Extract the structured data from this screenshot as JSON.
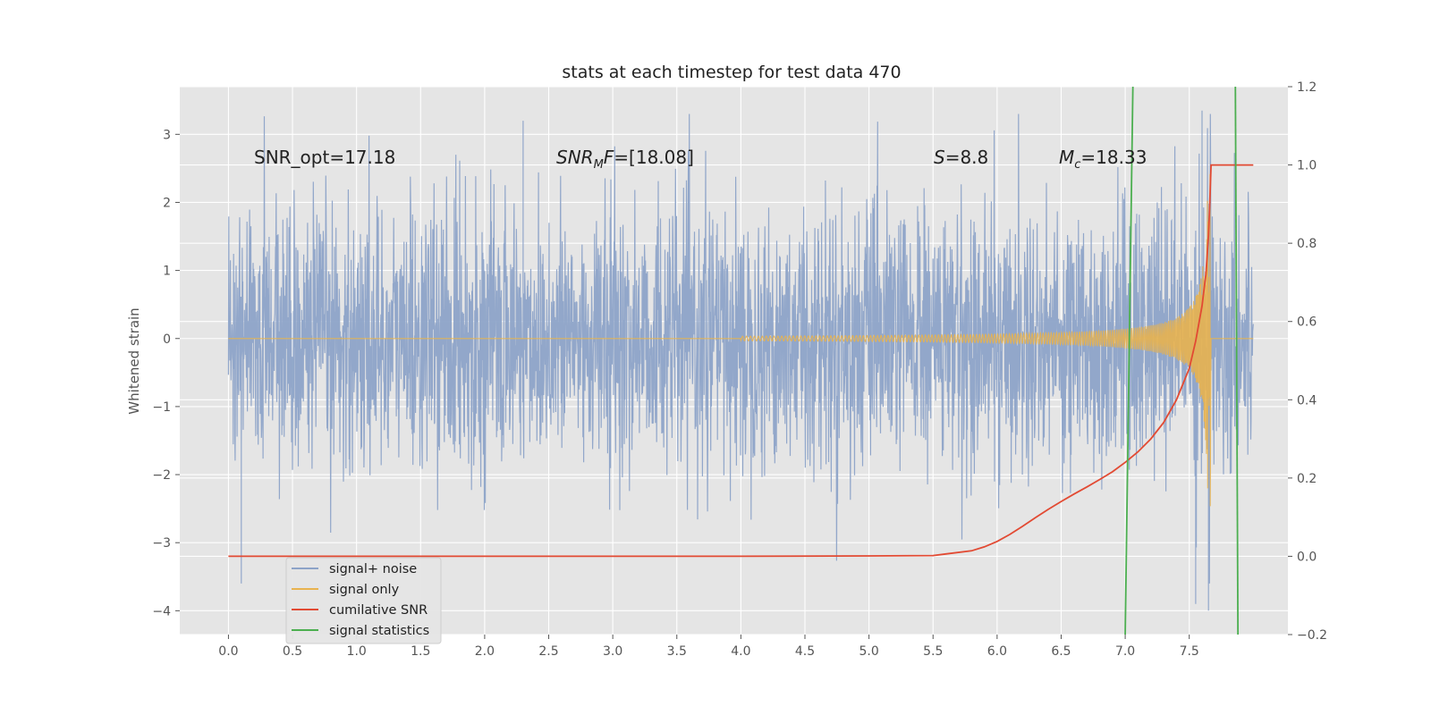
{
  "chart_data": {
    "type": "line",
    "title": "stats at each timestep for test data 470",
    "xlabel": "",
    "ylabel": "Whitened strain",
    "y2label": "",
    "xlim": [
      -0.38,
      8.27
    ],
    "ylim": [
      -4.35,
      3.7
    ],
    "y2lim": [
      -0.2,
      1.2
    ],
    "x_ticks": [
      "0.0",
      "0.5",
      "1.0",
      "1.5",
      "2.0",
      "2.5",
      "3.0",
      "3.5",
      "4.0",
      "4.5",
      "5.0",
      "5.5",
      "6.0",
      "6.5",
      "7.0",
      "7.5"
    ],
    "y_ticks": [
      "−4",
      "−3",
      "−2",
      "−1",
      "0",
      "1",
      "2",
      "3"
    ],
    "y2_ticks": [
      "−0.2",
      "0.0",
      "0.2",
      "0.4",
      "0.6",
      "0.8",
      "1.0",
      "1.2"
    ],
    "grid": true,
    "legend_position": "lower-left",
    "annotations": {
      "snr_opt": "SNR_opt=17.18",
      "snr_mf": "SNR_MF=[18.08]",
      "s": "S=8.8",
      "mc": "M_c=18.33"
    },
    "series": [
      {
        "name": "signal+ noise",
        "color": "#8da3c8",
        "description_axis": "left",
        "t_range": [
          0.0,
          8.0
        ],
        "approx_amplitude_range": [
          -3.6,
          3.3
        ],
        "peaks": [
          [
            0.1,
            -3.6
          ],
          [
            2.3,
            3.2
          ],
          [
            7.55,
            -3.9
          ],
          [
            7.65,
            -4.0
          ],
          [
            7.6,
            3.35
          ]
        ]
      },
      {
        "name": "signal only",
        "color": "#e8b34f",
        "description_axis": "left",
        "chirp_start": 5.5,
        "merger_time": 7.67,
        "peak_amplitude": 2.85
      },
      {
        "name": "cumilative SNR",
        "color": "#e24a33",
        "description_axis": "right",
        "x": [
          0.0,
          4.0,
          5.0,
          5.5,
          5.6,
          5.8,
          5.9,
          6.0,
          6.1,
          6.2,
          6.3,
          6.4,
          6.5,
          6.6,
          6.7,
          6.8,
          6.9,
          7.0,
          7.1,
          7.2,
          7.3,
          7.4,
          7.5,
          7.55,
          7.6,
          7.63,
          7.65,
          7.66,
          7.67,
          8.0
        ],
        "y": [
          0.0,
          0.0,
          0.001,
          0.002,
          0.006,
          0.014,
          0.024,
          0.038,
          0.056,
          0.077,
          0.099,
          0.12,
          0.14,
          0.159,
          0.177,
          0.196,
          0.216,
          0.24,
          0.267,
          0.3,
          0.342,
          0.4,
          0.48,
          0.55,
          0.64,
          0.72,
          0.82,
          0.9,
          1.0,
          1.0
        ]
      },
      {
        "name": "signal statistics",
        "color": "#4caf50",
        "description_axis": "left",
        "lines": [
          {
            "x": [
              7.06,
              7.0
            ],
            "y": [
              3.7,
              -4.35
            ]
          },
          {
            "x": [
              7.86,
              7.88
            ],
            "y": [
              3.7,
              -4.35
            ]
          }
        ]
      }
    ],
    "legend": [
      "signal+ noise",
      "signal only",
      "cumilative SNR",
      "signal statistics"
    ]
  }
}
